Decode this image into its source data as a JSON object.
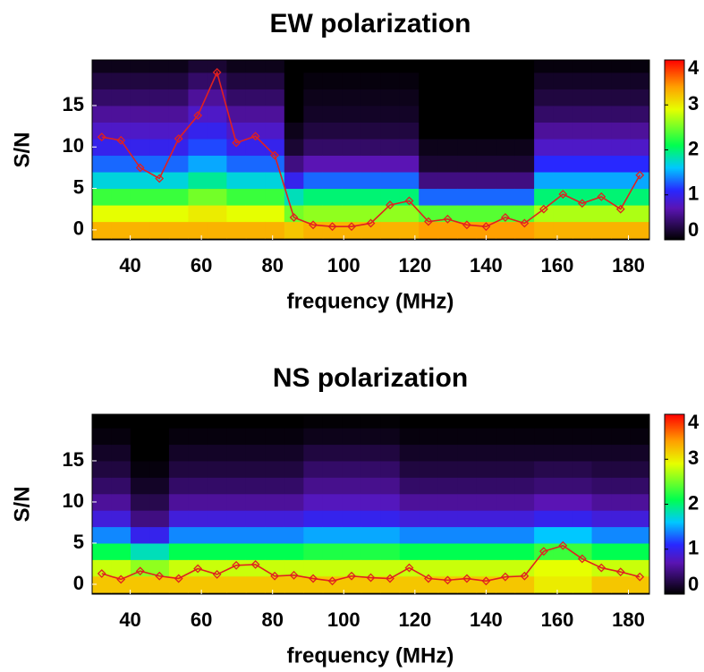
{
  "chart_data": [
    {
      "type": "heatmap",
      "title": "EW polarization",
      "xlabel": "frequency (MHz)",
      "ylabel": "S/N",
      "xlim": [
        29.3,
        185.9
      ],
      "ylim": [
        -1.2,
        20.5
      ],
      "xticks": [
        40,
        60,
        80,
        100,
        120,
        140,
        160,
        180
      ],
      "yticks": [
        0,
        5,
        10,
        15
      ],
      "zlim": [
        0,
        4
      ],
      "zticks": [
        0,
        1,
        2,
        3,
        4
      ],
      "colorscale": [
        [
          0,
          "#000000"
        ],
        [
          0.7,
          "#5a14b4"
        ],
        [
          1.1,
          "#2828ff"
        ],
        [
          1.6,
          "#00c8ff"
        ],
        [
          2.1,
          "#00ff50"
        ],
        [
          2.9,
          "#e6ff00"
        ],
        [
          3.4,
          "#ffa000"
        ],
        [
          4,
          "#ff0000"
        ]
      ],
      "xbins": [
        29.3,
        34.7,
        40.1,
        45.5,
        50.9,
        56.3,
        61.7,
        67.1,
        72.5,
        77.9,
        83.3,
        88.7,
        94.1,
        99.5,
        104.9,
        110.3,
        115.7,
        121.1,
        126.5,
        131.9,
        137.3,
        142.7,
        148.1,
        153.5,
        158.9,
        164.3,
        169.7,
        175.1,
        180.5,
        185.9
      ],
      "ybins": [
        -1,
        1,
        3,
        5,
        7,
        9,
        11,
        13,
        15,
        17,
        19,
        21
      ],
      "z": [
        [
          3.3,
          2.9,
          2.3,
          1.7,
          1.3,
          1.0,
          0.8,
          0.6,
          0.4,
          0.25,
          0.1
        ],
        [
          3.3,
          2.9,
          2.3,
          1.7,
          1.3,
          1.0,
          0.8,
          0.6,
          0.4,
          0.25,
          0.1
        ],
        [
          3.3,
          2.9,
          2.3,
          1.7,
          1.3,
          1.0,
          0.8,
          0.6,
          0.4,
          0.25,
          0.1
        ],
        [
          3.3,
          2.9,
          2.3,
          1.7,
          1.3,
          1.0,
          0.8,
          0.6,
          0.4,
          0.25,
          0.1
        ],
        [
          3.3,
          2.9,
          2.3,
          1.7,
          1.3,
          1.0,
          0.8,
          0.6,
          0.4,
          0.25,
          0.1
        ],
        [
          3.3,
          3.0,
          2.5,
          1.9,
          1.5,
          1.2,
          1.0,
          0.8,
          0.6,
          0.4,
          0.2
        ],
        [
          3.3,
          3.0,
          2.5,
          1.9,
          1.5,
          1.2,
          1.0,
          0.8,
          0.6,
          0.4,
          0.2
        ],
        [
          3.3,
          2.9,
          2.3,
          1.7,
          1.3,
          1.0,
          0.8,
          0.6,
          0.4,
          0.25,
          0.1
        ],
        [
          3.3,
          2.9,
          2.3,
          1.7,
          1.3,
          1.0,
          0.8,
          0.6,
          0.4,
          0.25,
          0.1
        ],
        [
          3.3,
          2.9,
          2.3,
          1.7,
          1.3,
          1.0,
          0.8,
          0.6,
          0.4,
          0.25,
          0.1
        ],
        [
          3.2,
          2.5,
          1.8,
          1.0,
          0.5,
          0.2,
          0.1,
          0,
          0,
          0,
          0
        ],
        [
          3.3,
          2.6,
          2.0,
          1.3,
          0.7,
          0.4,
          0.25,
          0.15,
          0.1,
          0.05,
          0
        ],
        [
          3.3,
          2.6,
          2.0,
          1.3,
          0.7,
          0.4,
          0.25,
          0.15,
          0.1,
          0.05,
          0
        ],
        [
          3.3,
          2.6,
          2.0,
          1.3,
          0.7,
          0.4,
          0.25,
          0.15,
          0.1,
          0.05,
          0
        ],
        [
          3.3,
          2.6,
          2.0,
          1.3,
          0.7,
          0.4,
          0.25,
          0.15,
          0.1,
          0.05,
          0
        ],
        [
          3.3,
          2.6,
          2.0,
          1.3,
          0.7,
          0.4,
          0.25,
          0.15,
          0.1,
          0.05,
          0
        ],
        [
          3.3,
          2.6,
          2.0,
          1.3,
          0.7,
          0.4,
          0.25,
          0.15,
          0.1,
          0.05,
          0
        ],
        [
          3.4,
          2.4,
          1.3,
          0.5,
          0.2,
          0.1,
          0,
          0,
          0,
          0,
          0
        ],
        [
          3.4,
          2.4,
          1.3,
          0.5,
          0.2,
          0.1,
          0,
          0,
          0,
          0,
          0
        ],
        [
          3.4,
          2.4,
          1.3,
          0.5,
          0.2,
          0.1,
          0,
          0,
          0,
          0,
          0
        ],
        [
          3.4,
          2.4,
          1.3,
          0.5,
          0.2,
          0.1,
          0,
          0,
          0,
          0,
          0
        ],
        [
          3.4,
          2.4,
          1.3,
          0.5,
          0.2,
          0.1,
          0,
          0,
          0,
          0,
          0
        ],
        [
          3.4,
          2.4,
          1.3,
          0.5,
          0.2,
          0.1,
          0,
          0,
          0,
          0,
          0
        ],
        [
          3.3,
          2.7,
          2.0,
          1.5,
          1.1,
          0.8,
          0.6,
          0.4,
          0.25,
          0.15,
          0.05
        ],
        [
          3.3,
          2.7,
          2.0,
          1.5,
          1.1,
          0.8,
          0.6,
          0.4,
          0.25,
          0.15,
          0.05
        ],
        [
          3.3,
          2.7,
          2.0,
          1.5,
          1.1,
          0.8,
          0.6,
          0.4,
          0.25,
          0.15,
          0.05
        ],
        [
          3.3,
          2.7,
          2.0,
          1.5,
          1.1,
          0.8,
          0.6,
          0.4,
          0.25,
          0.15,
          0.05
        ],
        [
          3.3,
          2.7,
          2.0,
          1.5,
          1.1,
          0.8,
          0.6,
          0.4,
          0.25,
          0.15,
          0.05
        ],
        [
          3.3,
          2.7,
          2.0,
          1.5,
          1.1,
          0.8,
          0.6,
          0.4,
          0.25,
          0.15,
          0.05
        ]
      ],
      "x": [
        32,
        37.4,
        42.8,
        48.2,
        53.6,
        59,
        64.4,
        69.8,
        75.2,
        80.6,
        86,
        91.4,
        96.8,
        102.2,
        107.6,
        113,
        118.4,
        123.8,
        129.2,
        134.6,
        140,
        145.4,
        150.8,
        156.2,
        161.6,
        167,
        172.4,
        177.8,
        183.2
      ],
      "series": [
        {
          "color": "#e02020",
          "values": [
            11.2,
            10.8,
            7.5,
            6.2,
            11,
            13.8,
            19,
            10.5,
            11.3,
            9,
            1.5,
            0.6,
            0.4,
            0.4,
            0.8,
            3,
            3.5,
            1,
            1.3,
            0.6,
            0.4,
            1.5,
            0.8,
            2.5,
            4.3,
            3.2,
            4,
            2.5,
            6.6
          ]
        }
      ]
    },
    {
      "type": "heatmap",
      "title": "NS polarization",
      "xlabel": "frequency (MHz)",
      "ylabel": "S/N",
      "xlim": [
        29.3,
        185.9
      ],
      "ylim": [
        -1.2,
        20.65
      ],
      "xticks": [
        40,
        60,
        80,
        100,
        120,
        140,
        160,
        180
      ],
      "yticks": [
        0,
        5,
        10,
        15
      ],
      "zlim": [
        0,
        4
      ],
      "zticks": [
        0,
        1,
        2,
        3,
        4
      ],
      "colorscale": [
        [
          0,
          "#000000"
        ],
        [
          0.7,
          "#5a14b4"
        ],
        [
          1.1,
          "#2828ff"
        ],
        [
          1.6,
          "#00c8ff"
        ],
        [
          2.1,
          "#00ff50"
        ],
        [
          2.9,
          "#e6ff00"
        ],
        [
          3.4,
          "#ffa000"
        ],
        [
          4,
          "#ff0000"
        ]
      ],
      "xbins": [
        29.3,
        34.7,
        40.1,
        45.5,
        50.9,
        56.3,
        61.7,
        67.1,
        72.5,
        77.9,
        83.3,
        88.7,
        94.1,
        99.5,
        104.9,
        110.3,
        115.7,
        121.1,
        126.5,
        131.9,
        137.3,
        142.7,
        148.1,
        153.5,
        158.9,
        164.3,
        169.7,
        175.1,
        180.5,
        185.9
      ],
      "ybins": [
        -1,
        1,
        3,
        5,
        7,
        9,
        11,
        13,
        15,
        17,
        19,
        21
      ],
      "z": [
        [
          3.2,
          2.8,
          2.1,
          1.4,
          0.9,
          0.6,
          0.4,
          0.25,
          0.15,
          0.05,
          0
        ],
        [
          3.2,
          2.8,
          2.1,
          1.4,
          0.9,
          0.6,
          0.4,
          0.25,
          0.15,
          0.05,
          0
        ],
        [
          3.2,
          2.6,
          1.8,
          1.0,
          0.5,
          0.3,
          0.15,
          0.05,
          0,
          0,
          0
        ],
        [
          3.2,
          2.6,
          1.8,
          1.0,
          0.5,
          0.3,
          0.15,
          0.05,
          0,
          0,
          0
        ],
        [
          3.2,
          2.8,
          2.1,
          1.4,
          0.9,
          0.6,
          0.4,
          0.25,
          0.15,
          0.05,
          0
        ],
        [
          3.2,
          2.8,
          2.1,
          1.4,
          0.9,
          0.6,
          0.4,
          0.25,
          0.15,
          0.05,
          0
        ],
        [
          3.2,
          2.8,
          2.1,
          1.4,
          0.9,
          0.6,
          0.4,
          0.25,
          0.15,
          0.05,
          0
        ],
        [
          3.2,
          2.8,
          2.1,
          1.4,
          0.9,
          0.6,
          0.4,
          0.25,
          0.15,
          0.05,
          0
        ],
        [
          3.2,
          2.8,
          2.1,
          1.4,
          0.9,
          0.6,
          0.4,
          0.25,
          0.15,
          0.05,
          0
        ],
        [
          3.2,
          2.8,
          2.1,
          1.4,
          0.9,
          0.6,
          0.4,
          0.25,
          0.15,
          0.05,
          0
        ],
        [
          3.2,
          2.8,
          2.1,
          1.4,
          0.9,
          0.6,
          0.4,
          0.25,
          0.15,
          0.05,
          0
        ],
        [
          3.2,
          2.8,
          2.2,
          1.5,
          1.0,
          0.75,
          0.55,
          0.4,
          0.25,
          0.1,
          0.02
        ],
        [
          3.2,
          2.8,
          2.2,
          1.5,
          1.0,
          0.75,
          0.55,
          0.4,
          0.25,
          0.1,
          0.02
        ],
        [
          3.2,
          2.8,
          2.2,
          1.5,
          1.0,
          0.75,
          0.55,
          0.4,
          0.25,
          0.1,
          0.02
        ],
        [
          3.2,
          2.8,
          2.2,
          1.5,
          1.0,
          0.75,
          0.55,
          0.4,
          0.25,
          0.1,
          0.02
        ],
        [
          3.2,
          2.8,
          2.2,
          1.5,
          1.0,
          0.75,
          0.55,
          0.4,
          0.25,
          0.1,
          0.02
        ],
        [
          3.2,
          2.8,
          2.1,
          1.4,
          0.9,
          0.6,
          0.4,
          0.25,
          0.15,
          0.05,
          0
        ],
        [
          3.2,
          2.8,
          2.1,
          1.4,
          0.9,
          0.6,
          0.4,
          0.25,
          0.15,
          0.05,
          0
        ],
        [
          3.2,
          2.8,
          2.1,
          1.4,
          0.9,
          0.6,
          0.4,
          0.25,
          0.15,
          0.05,
          0
        ],
        [
          3.2,
          2.8,
          2.1,
          1.4,
          0.9,
          0.6,
          0.4,
          0.25,
          0.15,
          0.05,
          0
        ],
        [
          3.2,
          2.8,
          2.1,
          1.4,
          0.9,
          0.6,
          0.4,
          0.25,
          0.15,
          0.05,
          0
        ],
        [
          3.2,
          2.8,
          2.1,
          1.4,
          0.9,
          0.6,
          0.4,
          0.25,
          0.15,
          0.05,
          0
        ],
        [
          3.2,
          2.8,
          2.1,
          1.4,
          0.9,
          0.6,
          0.4,
          0.25,
          0.15,
          0.05,
          0
        ],
        [
          3.0,
          2.9,
          2.3,
          1.6,
          1.0,
          0.7,
          0.45,
          0.3,
          0.15,
          0.05,
          0
        ],
        [
          3.0,
          2.9,
          2.3,
          1.6,
          1.0,
          0.7,
          0.45,
          0.3,
          0.15,
          0.05,
          0
        ],
        [
          3.0,
          2.9,
          2.3,
          1.6,
          1.0,
          0.7,
          0.45,
          0.3,
          0.15,
          0.05,
          0
        ],
        [
          3.2,
          2.8,
          2.1,
          1.4,
          0.9,
          0.6,
          0.4,
          0.25,
          0.15,
          0.05,
          0
        ],
        [
          3.2,
          2.8,
          2.1,
          1.4,
          0.9,
          0.6,
          0.4,
          0.25,
          0.15,
          0.05,
          0
        ],
        [
          3.2,
          2.8,
          2.1,
          1.4,
          0.9,
          0.6,
          0.4,
          0.25,
          0.15,
          0.05,
          0
        ]
      ],
      "x": [
        32,
        37.4,
        42.8,
        48.2,
        53.6,
        59,
        64.4,
        69.8,
        75.2,
        80.6,
        86,
        91.4,
        96.8,
        102.2,
        107.6,
        113,
        118.4,
        123.8,
        129.2,
        134.6,
        140,
        145.4,
        150.8,
        156.2,
        161.6,
        167,
        172.4,
        177.8,
        183.2
      ],
      "series": [
        {
          "color": "#e02020",
          "values": [
            1.3,
            0.6,
            1.6,
            1,
            0.7,
            1.9,
            1.2,
            2.3,
            2.4,
            1,
            1.1,
            0.7,
            0.4,
            1,
            0.8,
            0.7,
            2,
            0.7,
            0.5,
            0.7,
            0.4,
            0.9,
            1,
            4,
            4.7,
            3.1,
            2,
            1.5,
            0.9
          ]
        }
      ]
    }
  ]
}
